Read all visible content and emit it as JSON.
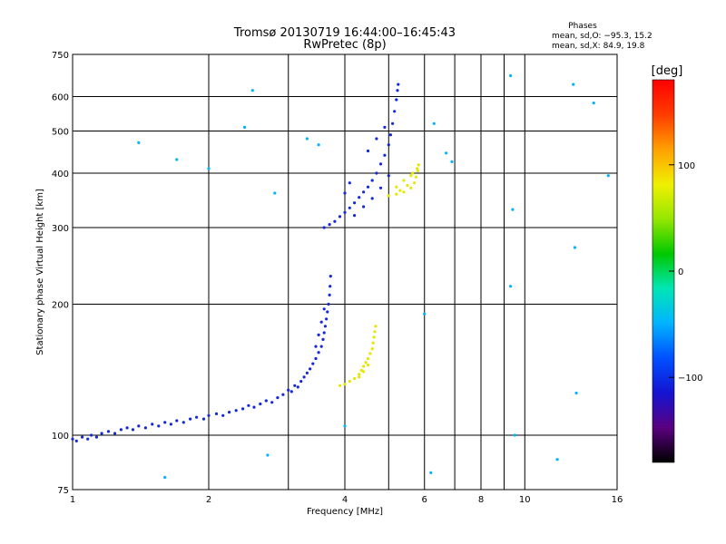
{
  "chart_data": {
    "type": "scatter",
    "title": "Tromsø 20130719 16:44:00–16:45:43",
    "subtitle": "RwPretec (8p)",
    "xlabel": "Frequency [MHz]",
    "ylabel": "Stationary phase Virtual Height [km]",
    "xscale": "log",
    "yscale": "log",
    "xlim": [
      1,
      16
    ],
    "ylim": [
      75,
      750
    ],
    "x_ticks": [
      1,
      2,
      4,
      6,
      8,
      10,
      16
    ],
    "x_tick_labels": [
      "1",
      "2",
      "4",
      "6",
      "8",
      "10",
      "16"
    ],
    "x_gridlines": [
      1,
      2,
      3,
      4,
      5,
      6,
      7,
      8,
      9,
      10,
      16
    ],
    "y_ticks": [
      75,
      100,
      200,
      300,
      400,
      500,
      600,
      750
    ],
    "y_tick_labels": [
      "75",
      "100",
      "200",
      "300",
      "400",
      "500",
      "600",
      "750"
    ],
    "grid": true,
    "legend": {
      "title": "Phases",
      "line1": "mean, sd,O:  −95.3, 15.2",
      "line2": "mean, sd,X:  84.9, 19.8",
      "placement": "top-right"
    },
    "colorbar": {
      "label": "[deg]",
      "range": [
        -180,
        180
      ],
      "ticks": [
        100,
        0,
        -100
      ],
      "tick_labels": [
        "100",
        "0",
        "−100"
      ],
      "colormap": [
        "#000000",
        "#5a0080",
        "#1414d2",
        "#0050ff",
        "#00b4ff",
        "#00e6b4",
        "#00c800",
        "#96e600",
        "#f0f000",
        "#ffa000",
        "#ff3c00",
        "#ff0000"
      ]
    },
    "series": [
      {
        "name": "E-layer O-mode",
        "phase_deg": -95,
        "color": "#1428dc",
        "points": [
          [
            1.0,
            98
          ],
          [
            1.02,
            97
          ],
          [
            1.05,
            99
          ],
          [
            1.08,
            98
          ],
          [
            1.1,
            100
          ],
          [
            1.13,
            99
          ],
          [
            1.16,
            101
          ],
          [
            1.2,
            102
          ],
          [
            1.24,
            101
          ],
          [
            1.28,
            103
          ],
          [
            1.32,
            104
          ],
          [
            1.36,
            103
          ],
          [
            1.4,
            105
          ],
          [
            1.45,
            104
          ],
          [
            1.5,
            106
          ],
          [
            1.55,
            105
          ],
          [
            1.6,
            107
          ],
          [
            1.65,
            106
          ],
          [
            1.7,
            108
          ],
          [
            1.76,
            107
          ],
          [
            1.82,
            109
          ],
          [
            1.88,
            110
          ],
          [
            1.95,
            109
          ],
          [
            2.0,
            111
          ],
          [
            2.08,
            112
          ],
          [
            2.15,
            111
          ],
          [
            2.22,
            113
          ],
          [
            2.3,
            114
          ],
          [
            2.38,
            115
          ],
          [
            2.45,
            117
          ],
          [
            2.52,
            116
          ],
          [
            2.6,
            118
          ],
          [
            2.68,
            120
          ],
          [
            2.76,
            119
          ],
          [
            2.84,
            122
          ],
          [
            2.92,
            124
          ],
          [
            3.0,
            127
          ],
          [
            3.05,
            126
          ],
          [
            3.1,
            130
          ],
          [
            3.15,
            129
          ],
          [
            3.2,
            133
          ],
          [
            3.25,
            136
          ],
          [
            3.3,
            139
          ],
          [
            3.35,
            142
          ],
          [
            3.4,
            146
          ],
          [
            3.45,
            150
          ],
          [
            3.5,
            155
          ],
          [
            3.55,
            160
          ],
          [
            3.58,
            166
          ],
          [
            3.6,
            172
          ],
          [
            3.62,
            178
          ],
          [
            3.64,
            185
          ],
          [
            3.66,
            192
          ],
          [
            3.68,
            200
          ],
          [
            3.7,
            210
          ],
          [
            3.71,
            220
          ],
          [
            3.72,
            232
          ],
          [
            3.5,
            170
          ],
          [
            3.55,
            182
          ],
          [
            3.45,
            160
          ],
          [
            3.6,
            195
          ]
        ]
      },
      {
        "name": "E-layer X-mode",
        "phase_deg": 85,
        "color": "#e6e600",
        "points": [
          [
            3.9,
            130
          ],
          [
            4.0,
            131
          ],
          [
            4.1,
            133
          ],
          [
            4.2,
            135
          ],
          [
            4.3,
            138
          ],
          [
            4.35,
            141
          ],
          [
            4.4,
            144
          ],
          [
            4.45,
            147
          ],
          [
            4.5,
            150
          ],
          [
            4.55,
            154
          ],
          [
            4.6,
            158
          ],
          [
            4.62,
            163
          ],
          [
            4.64,
            168
          ],
          [
            4.66,
            173
          ],
          [
            4.68,
            178
          ],
          [
            4.5,
            145
          ],
          [
            4.4,
            140
          ],
          [
            4.3,
            136
          ]
        ]
      },
      {
        "name": "F-layer O-mode",
        "phase_deg": -95,
        "color": "#1428dc",
        "points": [
          [
            3.6,
            300
          ],
          [
            3.7,
            305
          ],
          [
            3.8,
            310
          ],
          [
            3.9,
            318
          ],
          [
            4.0,
            325
          ],
          [
            4.1,
            333
          ],
          [
            4.2,
            342
          ],
          [
            4.3,
            352
          ],
          [
            4.4,
            362
          ],
          [
            4.5,
            372
          ],
          [
            4.6,
            385
          ],
          [
            4.7,
            400
          ],
          [
            4.8,
            420
          ],
          [
            4.9,
            440
          ],
          [
            5.0,
            465
          ],
          [
            5.05,
            490
          ],
          [
            5.1,
            520
          ],
          [
            5.15,
            555
          ],
          [
            5.2,
            590
          ],
          [
            5.23,
            620
          ],
          [
            5.25,
            640
          ],
          [
            4.2,
            320
          ],
          [
            4.4,
            335
          ],
          [
            4.6,
            350
          ],
          [
            4.8,
            370
          ],
          [
            5.0,
            395
          ],
          [
            4.0,
            360
          ],
          [
            4.1,
            380
          ],
          [
            4.5,
            450
          ],
          [
            4.7,
            480
          ],
          [
            4.9,
            510
          ]
        ]
      },
      {
        "name": "F-layer X-mode",
        "phase_deg": 85,
        "color": "#e6e600",
        "points": [
          [
            5.0,
            355
          ],
          [
            5.2,
            358
          ],
          [
            5.4,
            362
          ],
          [
            5.6,
            370
          ],
          [
            5.7,
            380
          ],
          [
            5.75,
            392
          ],
          [
            5.8,
            405
          ],
          [
            5.82,
            418
          ],
          [
            5.3,
            365
          ],
          [
            5.5,
            375
          ],
          [
            5.6,
            395
          ],
          [
            5.4,
            385
          ],
          [
            5.2,
            372
          ],
          [
            5.65,
            400
          ],
          [
            5.78,
            410
          ]
        ]
      },
      {
        "name": "Noise",
        "phase_deg": 0,
        "color": "#00b4ff",
        "points": [
          [
            1.4,
            470
          ],
          [
            1.7,
            430
          ],
          [
            2.0,
            410
          ],
          [
            2.4,
            510
          ],
          [
            2.8,
            360
          ],
          [
            3.3,
            480
          ],
          [
            3.5,
            465
          ],
          [
            6.3,
            520
          ],
          [
            6.7,
            445
          ],
          [
            6.9,
            425
          ],
          [
            9.3,
            670
          ],
          [
            9.4,
            330
          ],
          [
            9.5,
            100
          ],
          [
            12.8,
            640
          ],
          [
            12.9,
            270
          ],
          [
            13.0,
            125
          ],
          [
            14.2,
            580
          ],
          [
            15.3,
            395
          ],
          [
            1.6,
            80
          ],
          [
            2.7,
            90
          ],
          [
            6.2,
            82
          ],
          [
            11.8,
            88
          ],
          [
            9.3,
            220
          ],
          [
            6.0,
            190
          ],
          [
            4.0,
            105
          ],
          [
            2.5,
            620
          ]
        ]
      }
    ]
  }
}
